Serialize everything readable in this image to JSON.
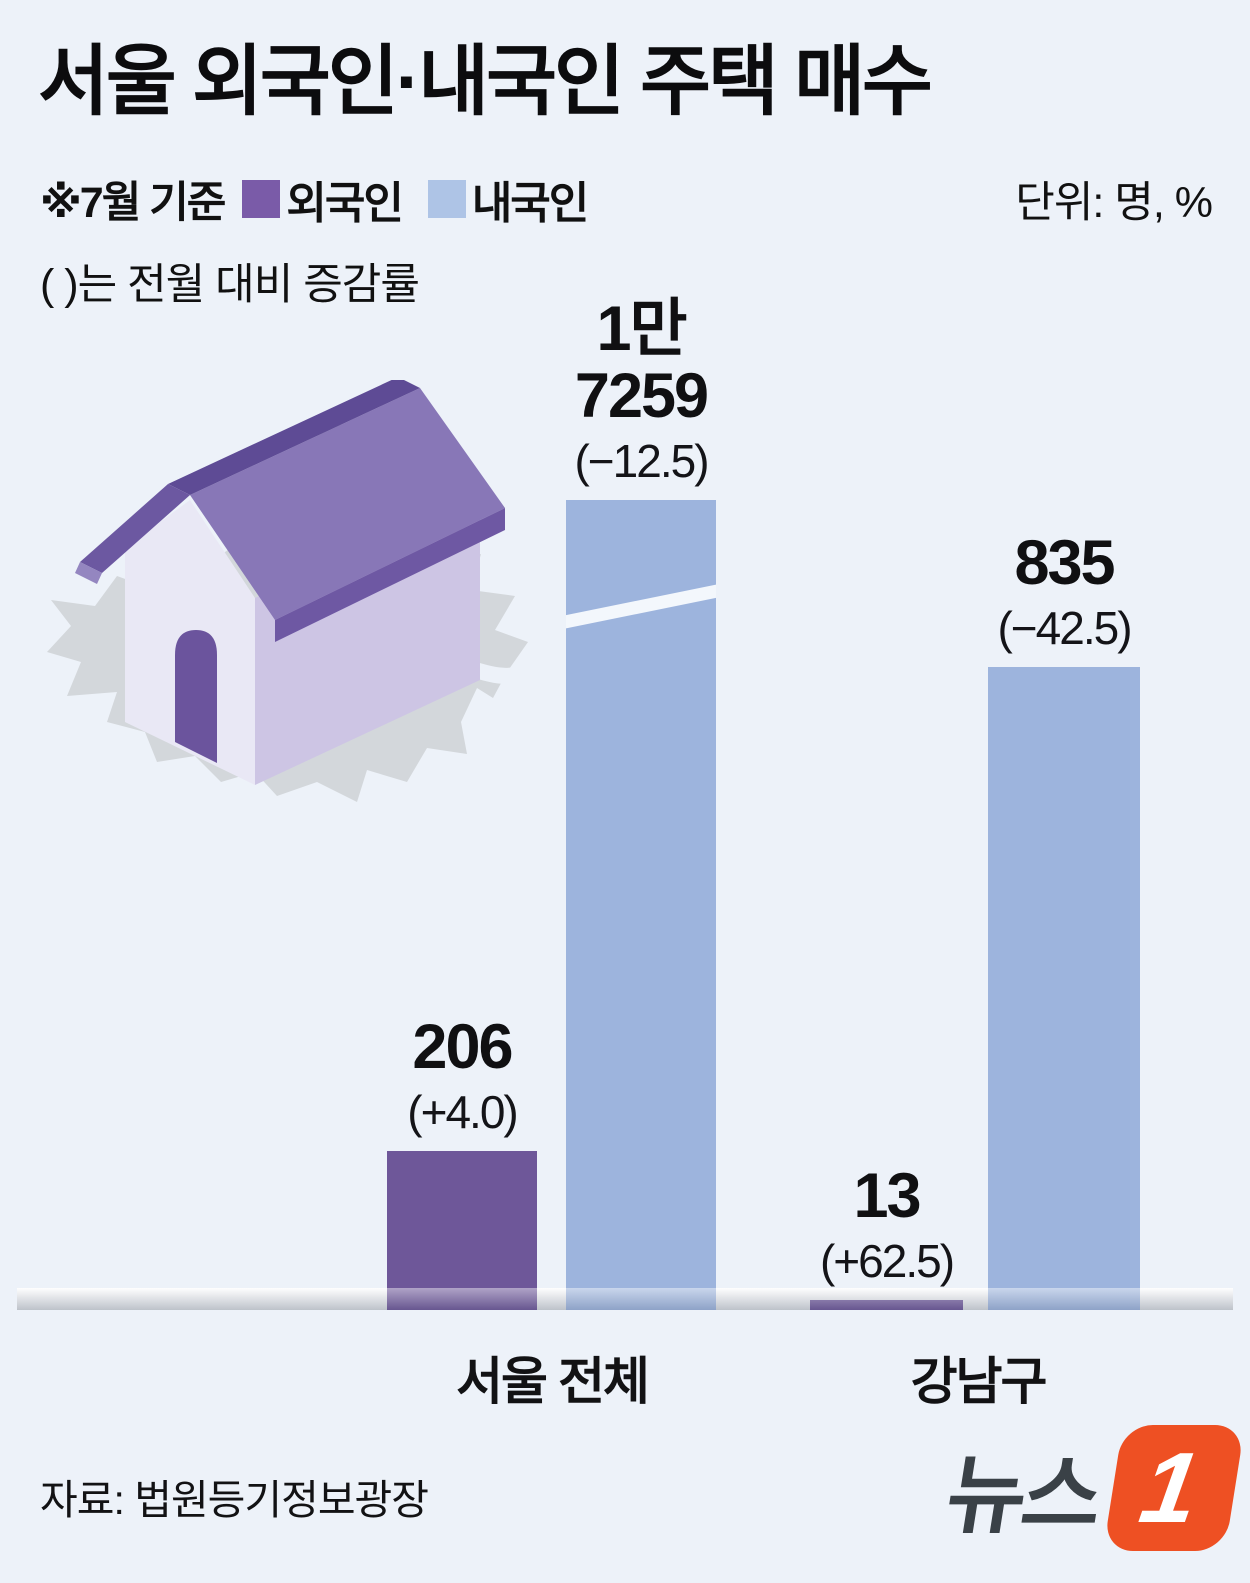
{
  "header": {
    "title": "서울 외국인·내국인 주택 매수",
    "basis_note": "※7월 기준",
    "unit_label": "단위: 명, %",
    "parens_note": "( )는 전월 대비 증감률"
  },
  "legend": [
    {
      "label": "외국인",
      "color": "#7a5ba8"
    },
    {
      "label": "내국인",
      "color": "#aec4e6"
    }
  ],
  "chart_data": {
    "type": "bar",
    "title": "서울 외국인·내국인 주택 매수",
    "unit": "명, %",
    "note": "( )는 전월 대비 증감률, ※7월 기준",
    "categories": [
      "서울 전체",
      "강남구"
    ],
    "series": [
      {
        "name": "외국인",
        "values": [
          206,
          13
        ],
        "mom_change_pct": [
          4.0,
          62.5
        ]
      },
      {
        "name": "내국인",
        "values": [
          17259,
          835
        ],
        "mom_change_pct": [
          -12.5,
          -42.5
        ]
      }
    ],
    "colors": {
      "외국인": "#6e5799",
      "내국인": "#9db4dd"
    },
    "legend_position": "top",
    "grid": false,
    "axis_break_on": "서울 전체 내국인",
    "bars": [
      {
        "category": "서울 전체",
        "series": "외국인",
        "value": 206,
        "label_lines": [
          "206"
        ],
        "change_label": "(+4.0)",
        "truncated": false
      },
      {
        "category": "서울 전체",
        "series": "내국인",
        "value": 17259,
        "label_lines": [
          "1만",
          "7259"
        ],
        "change_label": "(−12.5)",
        "truncated": true
      },
      {
        "category": "강남구",
        "series": "외국인",
        "value": 13,
        "label_lines": [
          "13"
        ],
        "change_label": "(+62.5)",
        "truncated": false
      },
      {
        "category": "강남구",
        "series": "내국인",
        "value": 835,
        "label_lines": [
          "835"
        ],
        "change_label": "(−42.5)",
        "truncated": false
      }
    ]
  },
  "footer": {
    "source": "자료: 법원등기정보광장",
    "logo_text": "뉴스",
    "logo_badge": "1"
  }
}
